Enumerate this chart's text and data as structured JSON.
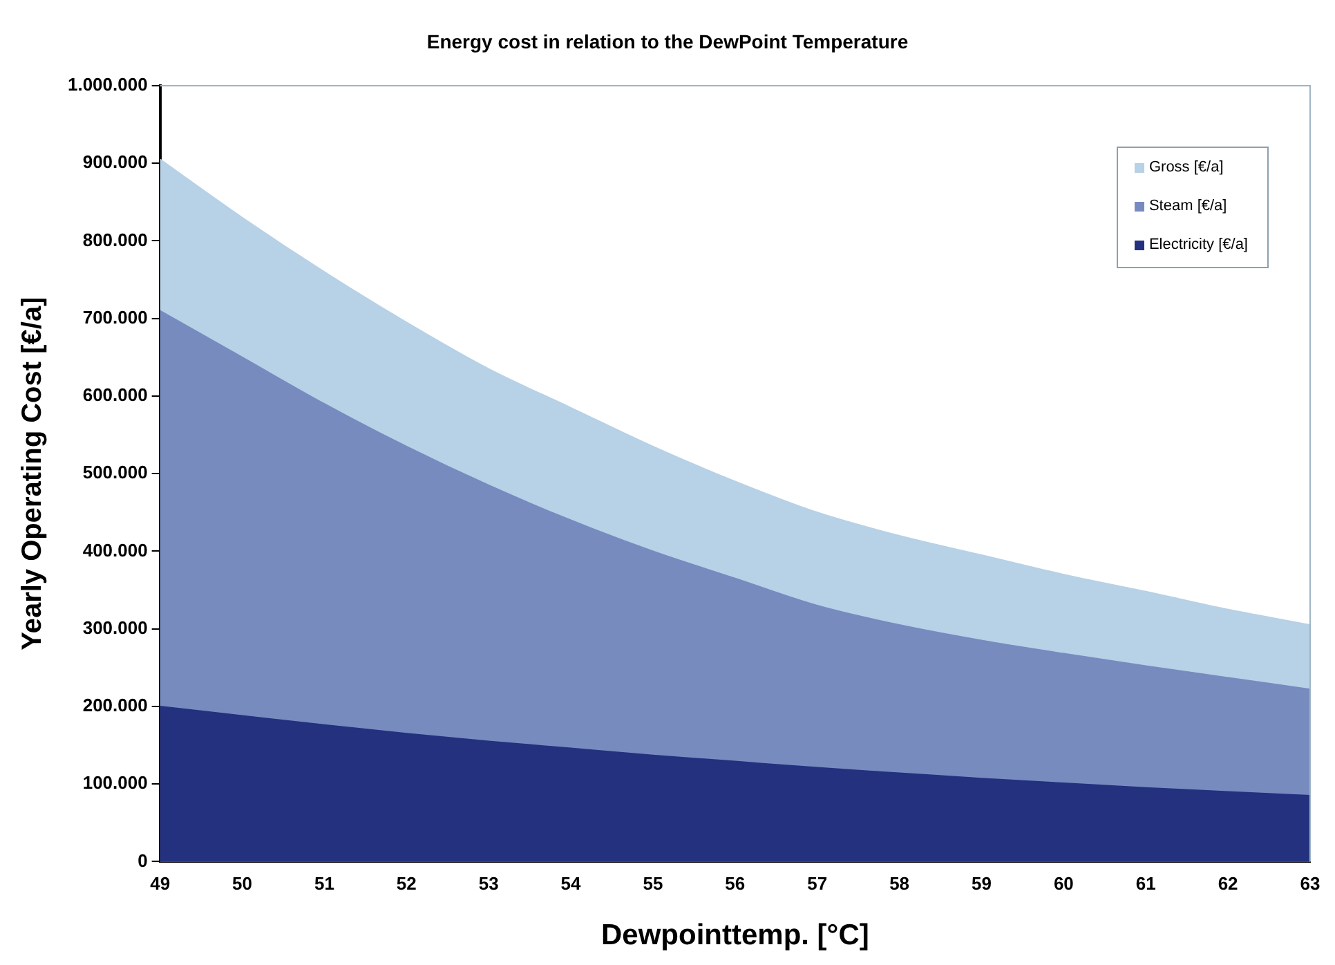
{
  "chart_data": {
    "type": "area",
    "title": "Energy cost in relation to the DewPoint Temperature",
    "xlabel": "Dewpointtemp. [°C]",
    "ylabel": "Yearly Operating Cost [€/a]",
    "x": [
      49,
      50,
      51,
      52,
      53,
      54,
      55,
      56,
      57,
      58,
      59,
      60,
      61,
      62,
      63
    ],
    "series": [
      {
        "name": "Gross [€/a]",
        "color": "#b7d1e6",
        "values": [
          905000,
          830000,
          760000,
          695000,
          635000,
          585000,
          535000,
          490000,
          450000,
          420000,
          395000,
          370000,
          348000,
          325000,
          305000
        ]
      },
      {
        "name": "Steam [€/a]",
        "color": "#778bbf",
        "values": [
          710000,
          650000,
          590000,
          535000,
          485000,
          440000,
          400000,
          365000,
          330000,
          305000,
          285000,
          268000,
          252000,
          237000,
          222000
        ]
      },
      {
        "name": "Electricity [€/a]",
        "color": "#24317f",
        "values": [
          200000,
          188000,
          176000,
          165000,
          155000,
          146000,
          137000,
          129000,
          121000,
          114000,
          107000,
          101000,
          95000,
          90000,
          85000
        ]
      }
    ],
    "xlim": [
      49,
      63
    ],
    "xticks": [
      49,
      50,
      51,
      52,
      53,
      54,
      55,
      56,
      57,
      58,
      59,
      60,
      61,
      62,
      63
    ],
    "ylim": [
      0,
      1000000
    ],
    "yticks": [
      0,
      {
        "value": 100000,
        "label": "100.000"
      },
      {
        "value": 200000,
        "label": "200.000"
      },
      {
        "value": 300000,
        "label": "300.000"
      },
      {
        "value": 400000,
        "label": "400.000"
      },
      {
        "value": 500000,
        "label": "500.000"
      },
      {
        "value": 600000,
        "label": "600.000"
      },
      {
        "value": 700000,
        "label": "700.000"
      },
      {
        "value": 800000,
        "label": "800.000"
      },
      {
        "value": 900000,
        "label": "900.000"
      },
      {
        "value": 1000000,
        "label": "1.000.000"
      }
    ],
    "grid": false,
    "legend": "top right"
  }
}
